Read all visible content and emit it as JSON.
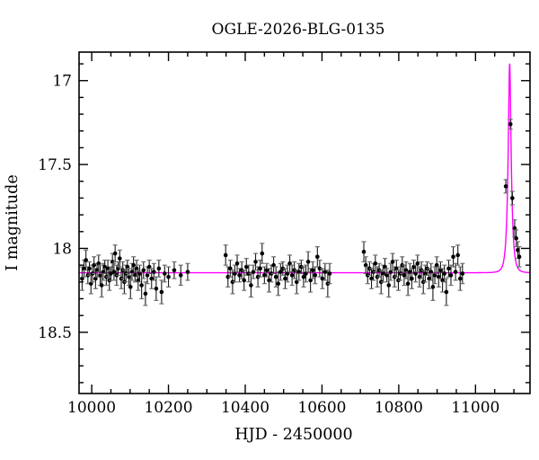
{
  "chart_data": {
    "type": "scatter",
    "title": "OGLE-2026-BLG-0135",
    "xlabel": "HJD - 2450000",
    "ylabel": "I magnitude",
    "xlim": [
      9967,
      11142
    ],
    "ylim": [
      18.865,
      16.83
    ],
    "y_axis_inverted": true,
    "x_major_ticks": [
      10000,
      10200,
      10400,
      10600,
      10800,
      11000
    ],
    "x_minor_tick_step": 50,
    "y_major_ticks": [
      17,
      17.5,
      18,
      18.5
    ],
    "y_minor_tick_step": 0.1,
    "grid": false,
    "legend": null,
    "marker_color": "#000000",
    "errorbar_color": "#1a1a1a",
    "errorbar_cap_color": "#6e6e6e",
    "curve_color": "#ff00ff",
    "model": {
      "type": "paczynski_microlensing",
      "t0": 11089,
      "tE": 8.2,
      "u0": 0.33,
      "baseline_mag": 18.145,
      "peak_mag": 16.9
    },
    "points_format": [
      "hjd_minus_2450000",
      "i_mag",
      "i_mag_err"
    ],
    "points": [
      [
        9975,
        18.18,
        0.07
      ],
      [
        9980,
        18.12,
        0.05
      ],
      [
        9985,
        18.07,
        0.06
      ],
      [
        9990,
        18.16,
        0.05
      ],
      [
        9994,
        18.12,
        0.04
      ],
      [
        9998,
        18.21,
        0.06
      ],
      [
        10002,
        18.15,
        0.05
      ],
      [
        10006,
        18.1,
        0.05
      ],
      [
        10010,
        18.18,
        0.06
      ],
      [
        10014,
        18.13,
        0.04
      ],
      [
        10018,
        18.09,
        0.05
      ],
      [
        10022,
        18.16,
        0.06
      ],
      [
        10026,
        18.22,
        0.07
      ],
      [
        10030,
        18.14,
        0.05
      ],
      [
        10034,
        18.11,
        0.04
      ],
      [
        10038,
        18.17,
        0.05
      ],
      [
        10042,
        18.12,
        0.05
      ],
      [
        10046,
        18.19,
        0.06
      ],
      [
        10050,
        18.15,
        0.04
      ],
      [
        10054,
        18.08,
        0.05
      ],
      [
        10058,
        18.14,
        0.05
      ],
      [
        10061,
        18.03,
        0.05
      ],
      [
        10065,
        18.16,
        0.06
      ],
      [
        10069,
        18.12,
        0.04
      ],
      [
        10073,
        18.06,
        0.05
      ],
      [
        10077,
        18.18,
        0.06
      ],
      [
        10081,
        18.13,
        0.05
      ],
      [
        10085,
        18.2,
        0.07
      ],
      [
        10089,
        18.15,
        0.05
      ],
      [
        10093,
        18.11,
        0.04
      ],
      [
        10097,
        18.17,
        0.05
      ],
      [
        10101,
        18.23,
        0.07
      ],
      [
        10105,
        18.14,
        0.05
      ],
      [
        10109,
        18.1,
        0.05
      ],
      [
        10113,
        18.16,
        0.04
      ],
      [
        10117,
        18.12,
        0.05
      ],
      [
        10121,
        18.19,
        0.06
      ],
      [
        10125,
        18.15,
        0.05
      ],
      [
        10130,
        18.22,
        0.08
      ],
      [
        10135,
        18.13,
        0.05
      ],
      [
        10140,
        18.27,
        0.07
      ],
      [
        10145,
        18.16,
        0.05
      ],
      [
        10150,
        18.11,
        0.04
      ],
      [
        10156,
        18.18,
        0.06
      ],
      [
        10162,
        18.14,
        0.05
      ],
      [
        10168,
        18.24,
        0.07
      ],
      [
        10175,
        18.12,
        0.05
      ],
      [
        10182,
        18.26,
        0.07
      ],
      [
        10190,
        18.15,
        0.05
      ],
      [
        10200,
        18.17,
        0.06
      ],
      [
        10215,
        18.13,
        0.05
      ],
      [
        10232,
        18.16,
        0.06
      ],
      [
        10250,
        18.14,
        0.05
      ],
      [
        10349,
        18.04,
        0.06
      ],
      [
        10355,
        18.17,
        0.06
      ],
      [
        10361,
        18.12,
        0.05
      ],
      [
        10367,
        18.2,
        0.07
      ],
      [
        10373,
        18.15,
        0.05
      ],
      [
        10379,
        18.09,
        0.05
      ],
      [
        10385,
        18.16,
        0.04
      ],
      [
        10391,
        18.13,
        0.05
      ],
      [
        10397,
        18.19,
        0.06
      ],
      [
        10403,
        18.11,
        0.05
      ],
      [
        10409,
        18.15,
        0.05
      ],
      [
        10415,
        18.22,
        0.07
      ],
      [
        10421,
        18.14,
        0.04
      ],
      [
        10427,
        18.08,
        0.05
      ],
      [
        10433,
        18.17,
        0.06
      ],
      [
        10439,
        18.12,
        0.05
      ],
      [
        10444,
        18.03,
        0.06
      ],
      [
        10450,
        18.16,
        0.05
      ],
      [
        10456,
        18.13,
        0.04
      ],
      [
        10462,
        18.19,
        0.07
      ],
      [
        10468,
        18.15,
        0.05
      ],
      [
        10474,
        18.1,
        0.05
      ],
      [
        10480,
        18.17,
        0.06
      ],
      [
        10486,
        18.21,
        0.07
      ],
      [
        10492,
        18.14,
        0.05
      ],
      [
        10498,
        18.12,
        0.04
      ],
      [
        10504,
        18.18,
        0.06
      ],
      [
        10510,
        18.15,
        0.05
      ],
      [
        10516,
        18.09,
        0.05
      ],
      [
        10522,
        18.16,
        0.06
      ],
      [
        10528,
        18.13,
        0.05
      ],
      [
        10534,
        18.2,
        0.07
      ],
      [
        10540,
        18.14,
        0.05
      ],
      [
        10546,
        18.11,
        0.04
      ],
      [
        10552,
        18.17,
        0.06
      ],
      [
        10558,
        18.15,
        0.05
      ],
      [
        10564,
        18.08,
        0.06
      ],
      [
        10570,
        18.19,
        0.07
      ],
      [
        10576,
        18.13,
        0.05
      ],
      [
        10582,
        18.16,
        0.05
      ],
      [
        10588,
        18.05,
        0.06
      ],
      [
        10594,
        18.12,
        0.05
      ],
      [
        10601,
        18.18,
        0.06
      ],
      [
        10608,
        18.14,
        0.05
      ],
      [
        10615,
        18.21,
        0.08
      ],
      [
        10620,
        18.15,
        0.06
      ],
      [
        10709,
        18.02,
        0.06
      ],
      [
        10714,
        18.1,
        0.05
      ],
      [
        10719,
        18.16,
        0.05
      ],
      [
        10724,
        18.12,
        0.04
      ],
      [
        10729,
        18.18,
        0.06
      ],
      [
        10734,
        18.14,
        0.05
      ],
      [
        10739,
        18.09,
        0.05
      ],
      [
        10744,
        18.17,
        0.06
      ],
      [
        10749,
        18.13,
        0.04
      ],
      [
        10754,
        18.2,
        0.07
      ],
      [
        10759,
        18.15,
        0.05
      ],
      [
        10764,
        18.11,
        0.05
      ],
      [
        10769,
        18.16,
        0.04
      ],
      [
        10774,
        18.22,
        0.07
      ],
      [
        10779,
        18.14,
        0.05
      ],
      [
        10784,
        18.08,
        0.05
      ],
      [
        10789,
        18.17,
        0.06
      ],
      [
        10794,
        18.12,
        0.05
      ],
      [
        10799,
        18.19,
        0.06
      ],
      [
        10804,
        18.15,
        0.04
      ],
      [
        10809,
        18.1,
        0.05
      ],
      [
        10814,
        18.16,
        0.06
      ],
      [
        10819,
        18.13,
        0.05
      ],
      [
        10824,
        18.21,
        0.07
      ],
      [
        10829,
        18.14,
        0.05
      ],
      [
        10834,
        18.18,
        0.06
      ],
      [
        10839,
        18.11,
        0.04
      ],
      [
        10844,
        18.15,
        0.05
      ],
      [
        10849,
        18.09,
        0.05
      ],
      [
        10854,
        18.17,
        0.06
      ],
      [
        10859,
        18.13,
        0.05
      ],
      [
        10864,
        18.2,
        0.07
      ],
      [
        10869,
        18.15,
        0.05
      ],
      [
        10874,
        18.12,
        0.04
      ],
      [
        10879,
        18.18,
        0.06
      ],
      [
        10884,
        18.14,
        0.05
      ],
      [
        10889,
        18.23,
        0.08
      ],
      [
        10894,
        18.16,
        0.05
      ],
      [
        10899,
        18.1,
        0.05
      ],
      [
        10904,
        18.17,
        0.06
      ],
      [
        10909,
        18.13,
        0.05
      ],
      [
        10914,
        18.19,
        0.07
      ],
      [
        10919,
        18.15,
        0.05
      ],
      [
        10924,
        18.26,
        0.08
      ],
      [
        10930,
        18.12,
        0.05
      ],
      [
        10936,
        18.16,
        0.06
      ],
      [
        10942,
        18.05,
        0.06
      ],
      [
        10948,
        18.14,
        0.05
      ],
      [
        10954,
        18.04,
        0.06
      ],
      [
        10960,
        18.18,
        0.07
      ],
      [
        10966,
        18.15,
        0.06
      ],
      [
        11079,
        17.63,
        0.04
      ],
      [
        11091,
        17.26,
        0.03
      ],
      [
        11096,
        17.7,
        0.04
      ],
      [
        11102,
        17.88,
        0.05
      ],
      [
        11106,
        17.94,
        0.05
      ],
      [
        11110,
        18.01,
        0.05
      ],
      [
        11114,
        18.05,
        0.06
      ]
    ]
  }
}
